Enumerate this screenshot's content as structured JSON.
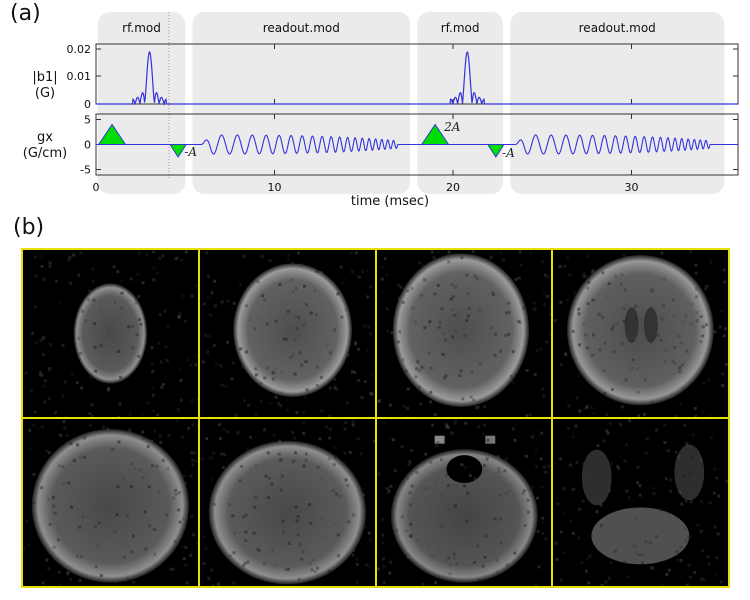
{
  "panel_a": {
    "label": "(a)",
    "modules": [
      {
        "name": "rf.mod",
        "t_start": 0.1,
        "t_end": 5.0
      },
      {
        "name": "readout.mod",
        "t_start": 5.4,
        "t_end": 17.6
      },
      {
        "name": "rf.mod",
        "t_start": 18.0,
        "t_end": 22.8
      },
      {
        "name": "readout.mod",
        "t_start": 23.2,
        "t_end": 35.2
      }
    ],
    "top_axis": {
      "ylabel_line1": "|b1|",
      "ylabel_line2": "(G)",
      "yticks": [
        "0.02",
        "0.01",
        "0"
      ],
      "ytick_values": [
        0.02,
        0.01,
        0
      ]
    },
    "bottom_axis": {
      "ylabel_line1": "gx",
      "ylabel_line2": "(G/cm)",
      "yticks": [
        "5",
        "0",
        "-5"
      ],
      "ytick_values": [
        5,
        0,
        -5
      ]
    },
    "xticks": [
      "0",
      "10",
      "20",
      "30"
    ],
    "xtick_values": [
      0,
      10,
      20,
      30
    ],
    "xlabel": "time (msec)",
    "annotations": [
      "-A",
      "2A",
      "-A"
    ],
    "colors": {
      "waveform": "#3333dd",
      "gradient_fill": "#00dd00",
      "module_bg": "#ebebeb",
      "axis": "#333333"
    }
  },
  "panel_b": {
    "label": "(b)",
    "rows": 2,
    "cols": 4,
    "slices": [
      {
        "row": 1,
        "col": 1,
        "description": "superior brain slice, small"
      },
      {
        "row": 1,
        "col": 2,
        "description": "upper brain slice"
      },
      {
        "row": 1,
        "col": 3,
        "description": "mid-upper brain slice"
      },
      {
        "row": 1,
        "col": 4,
        "description": "brain slice with ventricles"
      },
      {
        "row": 2,
        "col": 1,
        "description": "mid brain slice"
      },
      {
        "row": 2,
        "col": 2,
        "description": "lower brain slice"
      },
      {
        "row": 2,
        "col": 3,
        "description": "temporal lobe level slice"
      },
      {
        "row": 2,
        "col": 4,
        "description": "inferior slice with cerebellum"
      }
    ],
    "border_color": "#e8e000"
  },
  "chart_data": {
    "type": "line",
    "title": "",
    "xlabel": "time (msec)",
    "xlim": [
      0,
      36
    ],
    "series": [
      {
        "name": "|b1| (G)",
        "description": "two sinc RF pulses",
        "peaks": [
          {
            "t": 3.0,
            "value": 0.02
          },
          {
            "t": 20.8,
            "value": 0.02
          }
        ],
        "ylim": [
          0,
          0.022
        ]
      },
      {
        "name": "gx (G/cm)",
        "description": "slice-select triangles, rephasers, and oscillating readout gradients",
        "triangles": [
          {
            "t_center": 0.9,
            "amplitude": 4.0,
            "label": ""
          },
          {
            "t_center": 4.6,
            "amplitude": -2.5,
            "label": "-A"
          },
          {
            "t_center": 19.0,
            "amplitude": 4.0,
            "label": "2A"
          },
          {
            "t_center": 22.4,
            "amplitude": -2.5,
            "label": "-A"
          }
        ],
        "readouts": [
          {
            "t_start": 5.9,
            "t_end": 16.9,
            "amplitude": 1.9
          },
          {
            "t_start": 23.5,
            "t_end": 34.4,
            "amplitude": 1.9
          }
        ],
        "ylim": [
          -6,
          6
        ]
      }
    ]
  }
}
